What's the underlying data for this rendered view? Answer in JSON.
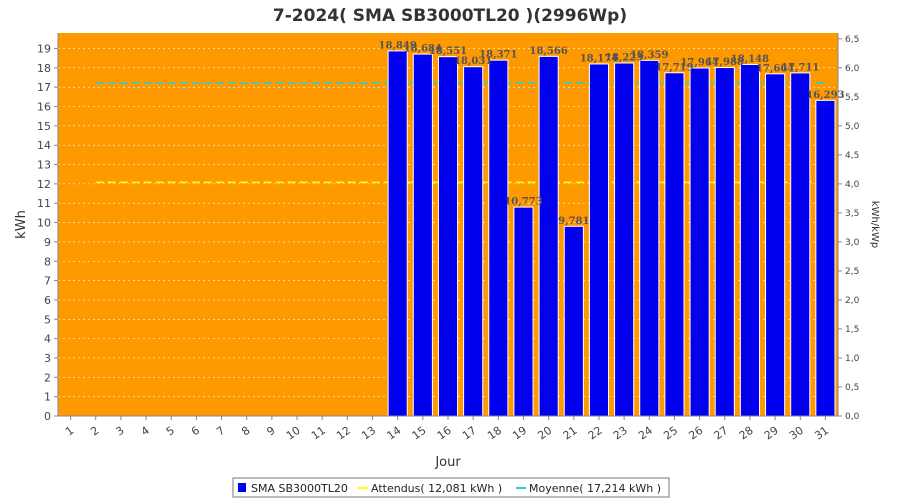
{
  "chart_data": {
    "type": "bar",
    "title": "7-2024( SMA SB3000TL20 )(2996Wp)",
    "xlabel": "Jour",
    "ylabel": "kWh",
    "y2label": "kWh/kWp",
    "ylim": [
      0,
      19.8
    ],
    "y2lim": [
      0,
      6.6
    ],
    "y_ticks": [
      0,
      1,
      2,
      3,
      4,
      5,
      6,
      7,
      8,
      9,
      10,
      11,
      12,
      13,
      14,
      15,
      16,
      17,
      18,
      19
    ],
    "y2_ticks": [
      "0,0",
      "0,5",
      "1,0",
      "1,5",
      "2,0",
      "2,5",
      "3,0",
      "3,5",
      "4,0",
      "4,5",
      "5,0",
      "5,5",
      "6,0",
      "6,5"
    ],
    "categories": [
      "1",
      "2",
      "3",
      "4",
      "5",
      "6",
      "7",
      "8",
      "9",
      "10",
      "11",
      "12",
      "13",
      "14",
      "15",
      "16",
      "17",
      "18",
      "19",
      "20",
      "21",
      "22",
      "23",
      "24",
      "25",
      "26",
      "27",
      "28",
      "29",
      "30",
      "31"
    ],
    "series": [
      {
        "name": "SMA SB3000TL20",
        "color": "#0000ee",
        "values": [
          null,
          null,
          null,
          null,
          null,
          null,
          null,
          null,
          null,
          null,
          null,
          null,
          null,
          18.849,
          18.684,
          18.551,
          18.031,
          18.371,
          10.773,
          18.566,
          9.781,
          18.174,
          18.223,
          18.359,
          17.719,
          17.964,
          17.988,
          18.148,
          17.664,
          17.711,
          16.293
        ],
        "labels": [
          "",
          "",
          "",
          "",
          "",
          "",
          "",
          "",
          "",
          "",
          "",
          "",
          "",
          "18,849",
          "18,684",
          "18,551",
          "18,031",
          "18,371",
          "10,773",
          "18,566",
          "9,781",
          "18,174",
          "18,223",
          "18,359",
          "17,719",
          "17,964",
          "17,988",
          "18,148",
          "17,664",
          "17,711",
          "16,293"
        ]
      }
    ],
    "reference_lines": [
      {
        "name": "Attendus",
        "value": 12.081,
        "color": "#ffff00"
      },
      {
        "name": "Moyenne",
        "value": 17.214,
        "color": "#33cccc"
      }
    ],
    "legend": {
      "placement": "bottom",
      "items": [
        {
          "label": "SMA SB3000TL20",
          "color": "#0000ee"
        },
        {
          "label": "Attendus( 12,081 kWh )",
          "color": "#ffff00"
        },
        {
          "label": "Moyenne( 17,214 kWh )",
          "color": "#33cccc"
        }
      ]
    },
    "plot_background": "#ff9900",
    "grid": true
  }
}
